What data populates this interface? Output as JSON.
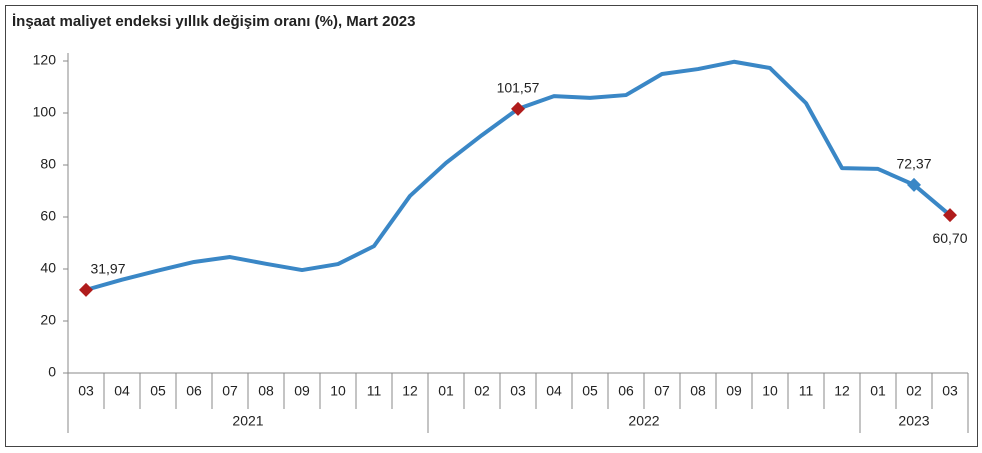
{
  "chart_data": {
    "type": "line",
    "title": "İnşaat maliyet endeksi yıllık değişim oranı (%), Mart 2023",
    "categories": [
      {
        "month": "03",
        "year": "2021"
      },
      {
        "month": "04",
        "year": "2021"
      },
      {
        "month": "05",
        "year": "2021"
      },
      {
        "month": "06",
        "year": "2021"
      },
      {
        "month": "07",
        "year": "2021"
      },
      {
        "month": "08",
        "year": "2021"
      },
      {
        "month": "09",
        "year": "2021"
      },
      {
        "month": "10",
        "year": "2021"
      },
      {
        "month": "11",
        "year": "2021"
      },
      {
        "month": "12",
        "year": "2021"
      },
      {
        "month": "01",
        "year": "2022"
      },
      {
        "month": "02",
        "year": "2022"
      },
      {
        "month": "03",
        "year": "2022"
      },
      {
        "month": "04",
        "year": "2022"
      },
      {
        "month": "05",
        "year": "2022"
      },
      {
        "month": "06",
        "year": "2022"
      },
      {
        "month": "07",
        "year": "2022"
      },
      {
        "month": "08",
        "year": "2022"
      },
      {
        "month": "09",
        "year": "2022"
      },
      {
        "month": "10",
        "year": "2022"
      },
      {
        "month": "11",
        "year": "2022"
      },
      {
        "month": "12",
        "year": "2022"
      },
      {
        "month": "01",
        "year": "2023"
      },
      {
        "month": "02",
        "year": "2023"
      },
      {
        "month": "03",
        "year": "2023"
      }
    ],
    "values": [
      31.97,
      35.9,
      39.4,
      42.7,
      44.6,
      42.0,
      39.6,
      41.9,
      48.8,
      68.1,
      80.8,
      91.5,
      101.57,
      106.5,
      105.8,
      106.9,
      115.0,
      116.9,
      119.7,
      117.3,
      103.8,
      78.8,
      78.5,
      72.37,
      60.7
    ],
    "value_labels": [
      "31,97",
      null,
      null,
      null,
      null,
      null,
      null,
      null,
      null,
      null,
      null,
      null,
      "101,57",
      null,
      null,
      null,
      null,
      null,
      null,
      null,
      null,
      null,
      null,
      "72,37",
      "60,70"
    ],
    "marker_colors": [
      "#b01c1c",
      null,
      null,
      null,
      null,
      null,
      null,
      null,
      null,
      null,
      null,
      null,
      "#b01c1c",
      null,
      null,
      null,
      null,
      null,
      null,
      null,
      null,
      null,
      null,
      "#3a87c6",
      "#b01c1c"
    ],
    "color": "#3a87c6",
    "ylim": [
      0,
      120
    ],
    "yticks": [
      0,
      20,
      40,
      60,
      80,
      100,
      120
    ],
    "grid": false
  }
}
